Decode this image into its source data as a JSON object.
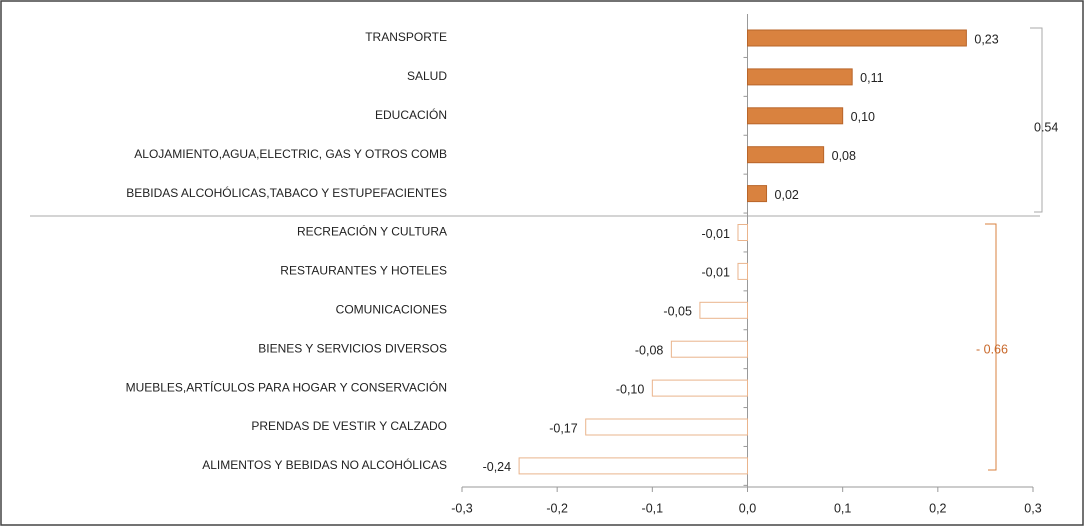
{
  "chart_data": {
    "type": "hbar",
    "categories": [
      "TRANSPORTE",
      "SALUD",
      "EDUCACIÓN",
      "ALOJAMIENTO,AGUA,ELECTRIC, GAS Y OTROS COMB",
      "BEBIDAS ALCOHÓLICAS,TABACO Y ESTUPEFACIENTES",
      "RECREACIÓN Y CULTURA",
      "RESTAURANTES Y HOTELES",
      "COMUNICACIONES",
      "BIENES Y SERVICIOS DIVERSOS",
      "MUEBLES,ARTÍCULOS PARA HOGAR Y CONSERVACIÓN",
      "PRENDAS DE VESTIR Y CALZADO",
      "ALIMENTOS Y BEBIDAS NO ALCOHÓLICAS"
    ],
    "values": [
      0.23,
      0.11,
      0.1,
      0.08,
      0.02,
      -0.01,
      -0.01,
      -0.05,
      -0.08,
      -0.1,
      -0.17,
      -0.24
    ],
    "value_labels": [
      "0,23",
      "0,11",
      "0,10",
      "0,08",
      "0,02",
      "-0,01",
      "-0,01",
      "-0,05",
      "-0,08",
      "-0,10",
      "-0,17",
      "-0,24"
    ],
    "color": "#d9823f",
    "xlim": [
      -0.3,
      0.3
    ],
    "xticks": [
      {
        "value": -0.3,
        "label": "-0,3"
      },
      {
        "value": -0.2,
        "label": "-0,2"
      },
      {
        "value": -0.1,
        "label": "-0,1"
      },
      {
        "value": 0,
        "label": "0,0"
      },
      {
        "value": 0.1,
        "label": "0,1"
      },
      {
        "value": 0.2,
        "label": "0,2"
      },
      {
        "value": 0.3,
        "label": "0,3"
      }
    ],
    "annotations": [
      {
        "text": "0.54"
      },
      {
        "text": "- 0.66"
      }
    ]
  }
}
